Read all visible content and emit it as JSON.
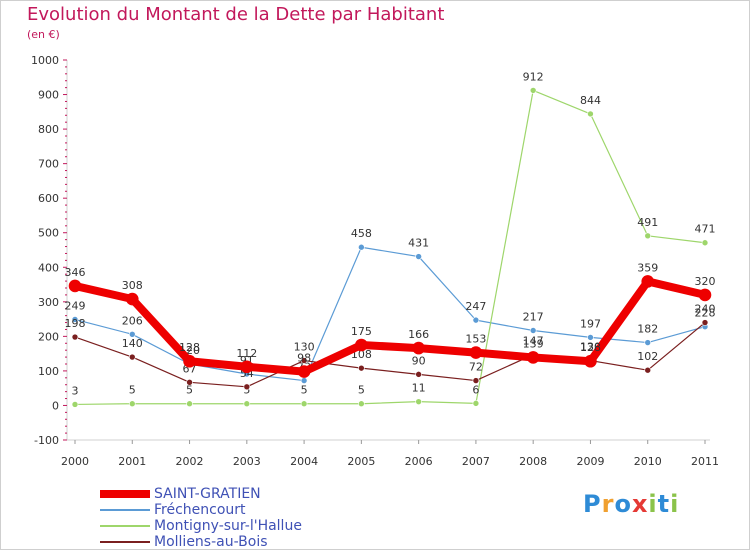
{
  "title": "Evolution du Montant de la Dette par Habitant",
  "subtitle": "(en €)",
  "logo": {
    "text": "Proxiti",
    "letters": [
      "P",
      "r",
      "o",
      "x",
      "i",
      "t",
      "i"
    ],
    "colors": [
      "#2e8bd6",
      "#f0a030",
      "#2e8bd6",
      "#e53935",
      "#8bc34a",
      "#2e8bd6",
      "#8bc34a"
    ]
  },
  "chart_data": {
    "type": "line",
    "x": [
      "2000",
      "2001",
      "2002",
      "2003",
      "2004",
      "2005",
      "2006",
      "2007",
      "2008",
      "2009",
      "2010",
      "2011"
    ],
    "ylim": [
      -100,
      1000
    ],
    "yticks": [
      -100,
      0,
      100,
      200,
      300,
      400,
      500,
      600,
      700,
      800,
      900,
      1000
    ],
    "grid": false,
    "legend_position": "bottom-left",
    "series": [
      {
        "name": "Fréchencourt",
        "color": "#5b9bd5",
        "values": [
          249,
          206,
          120,
          91,
          72,
          458,
          431,
          247,
          217,
          197,
          182,
          228
        ],
        "labels": [
          "249",
          "206",
          "120",
          "91",
          "72",
          "458",
          "431",
          "247",
          "217",
          "197",
          "182",
          "228"
        ]
      },
      {
        "name": "Montigny-sur-l'Hallue",
        "color": "#9ed66b",
        "values": [
          3,
          5,
          5,
          5,
          5,
          5,
          11,
          6,
          912,
          844,
          491,
          471
        ],
        "labels": [
          "3",
          "5",
          "5",
          "5",
          "5",
          "5",
          "11",
          "6",
          "912",
          "844",
          "491",
          "471"
        ]
      },
      {
        "name": "Molliens-au-Bois",
        "color": "#7a1f1f",
        "values": [
          198,
          140,
          67,
          54,
          130,
          108,
          90,
          72,
          147,
          130,
          102,
          240
        ],
        "labels": [
          "198",
          "140",
          "67",
          "54",
          "130",
          "108",
          "90",
          "72",
          "147",
          "130",
          "102",
          "240"
        ]
      },
      {
        "name": "SAINT-GRATIEN",
        "color": "#ee0000",
        "values": [
          346,
          308,
          128,
          112,
          98,
          175,
          166,
          153,
          139,
          128,
          359,
          320
        ],
        "labels": [
          "346",
          "308",
          "128",
          "112",
          "98",
          "175",
          "166",
          "153",
          "139",
          "128",
          "359",
          "320"
        ]
      }
    ],
    "legend_order": [
      "SAINT-GRATIEN",
      "Fréchencourt",
      "Montigny-sur-l'Hallue",
      "Molliens-au-Bois"
    ]
  }
}
